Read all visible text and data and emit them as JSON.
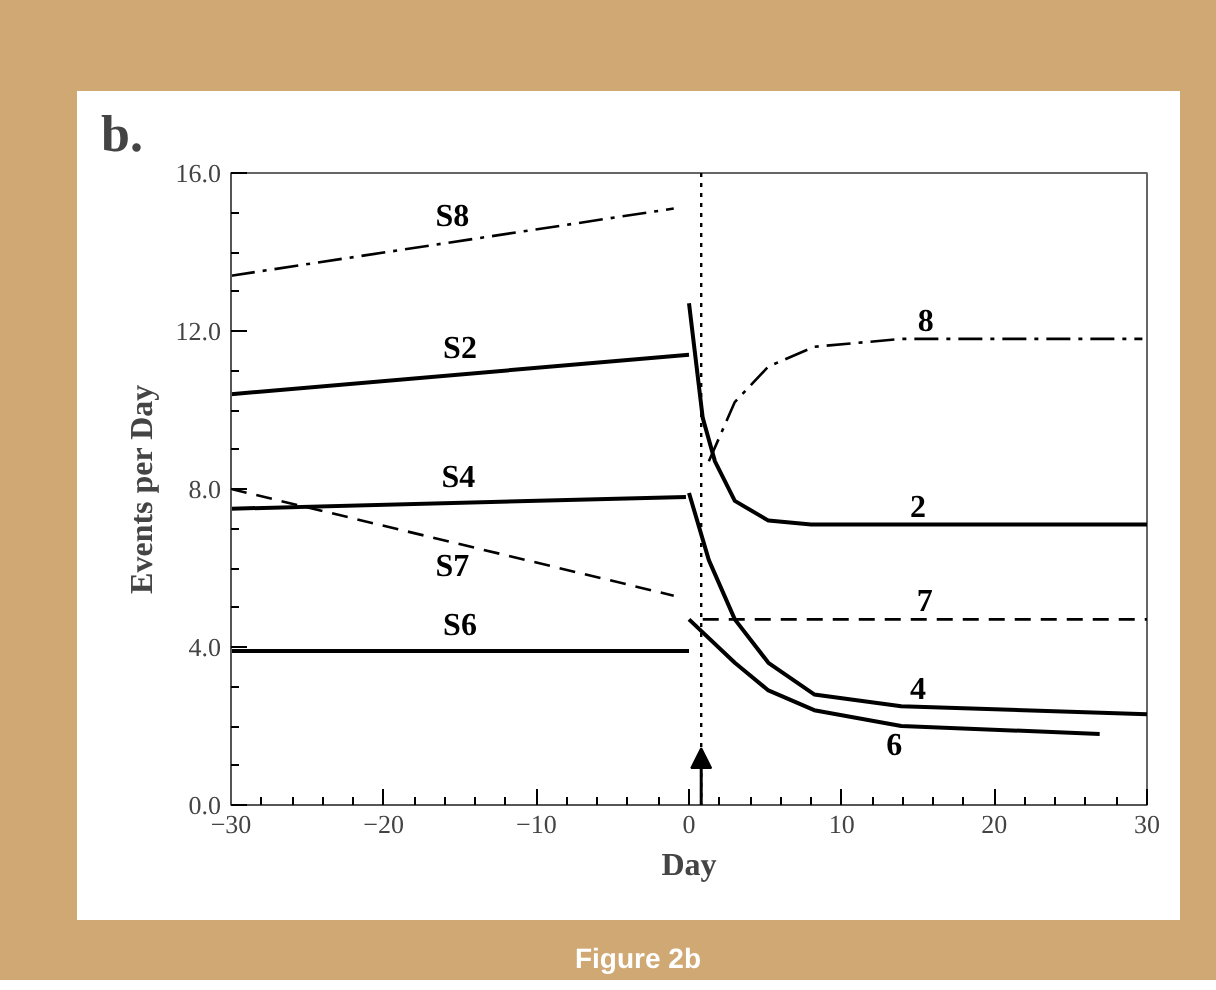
{
  "chart_data": {
    "type": "line",
    "title": "b.",
    "xlabel": "Day",
    "ylabel": "Events per Day",
    "xlim": [
      -30,
      30
    ],
    "ylim": [
      0,
      16
    ],
    "xticks": [
      -30,
      -20,
      -10,
      0,
      10,
      20,
      30
    ],
    "yticks": [
      {
        "value": 0,
        "label": "0.0"
      },
      {
        "value": 4,
        "label": "4.0"
      },
      {
        "value": 8,
        "label": "8.0"
      },
      {
        "value": 12,
        "label": "12.0"
      },
      {
        "value": 16,
        "label": "16.0"
      }
    ],
    "grid": false,
    "legend": false,
    "marker": "none",
    "series": [
      {
        "name": "S8",
        "color": "#000000",
        "line_style": "dashdot",
        "x": [
          -30,
          -1
        ],
        "values": [
          13.4,
          15.1
        ]
      },
      {
        "name": "S2",
        "color": "#000000",
        "line_style": "solid",
        "x": [
          -30,
          0
        ],
        "values": [
          10.4,
          11.4
        ]
      },
      {
        "name": "S4",
        "color": "#000000",
        "line_style": "solid",
        "x": [
          -30,
          -0.2
        ],
        "values": [
          7.5,
          7.8
        ]
      },
      {
        "name": "S7",
        "color": "#000000",
        "line_style": "dashed",
        "x": [
          -30,
          -1
        ],
        "values": [
          8.0,
          5.3
        ]
      },
      {
        "name": "S6",
        "color": "#000000",
        "line_style": "solid",
        "x": [
          -30,
          0
        ],
        "values": [
          3.9,
          3.9
        ]
      },
      {
        "name": "8",
        "color": "#000000",
        "line_style": "dashdot",
        "x": [
          1.3,
          3.0,
          5.2,
          8.2,
          13.9,
          29.7
        ],
        "values": [
          8.7,
          10.2,
          11.1,
          11.6,
          11.8,
          11.8
        ]
      },
      {
        "name": "2",
        "color": "#000000",
        "line_style": "solid",
        "x": [
          0,
          0.9,
          1.7,
          3.0,
          5.2,
          8.0,
          30
        ],
        "values": [
          12.7,
          9.8,
          8.7,
          7.7,
          7.2,
          7.1,
          7.1
        ]
      },
      {
        "name": "7",
        "color": "#000000",
        "line_style": "dashed",
        "x": [
          0.9,
          30
        ],
        "values": [
          4.7,
          4.7
        ]
      },
      {
        "name": "4",
        "color": "#000000",
        "line_style": "solid",
        "x": [
          0,
          1.3,
          3.0,
          5.2,
          8.2,
          13.9,
          30
        ],
        "values": [
          7.9,
          6.2,
          4.7,
          3.6,
          2.8,
          2.5,
          2.3
        ]
      },
      {
        "name": "6",
        "color": "#000000",
        "line_style": "solid",
        "x": [
          0,
          3.0,
          5.2,
          8.2,
          13.9,
          26.9
        ],
        "values": [
          4.7,
          3.6,
          2.9,
          2.4,
          2.0,
          1.8
        ]
      }
    ],
    "ref_lines": [
      {
        "axis": "x",
        "value": 0.8,
        "label": null,
        "line_style": "dotted",
        "color": "#000000"
      }
    ],
    "annotations": [
      "Figure 2b"
    ]
  }
}
